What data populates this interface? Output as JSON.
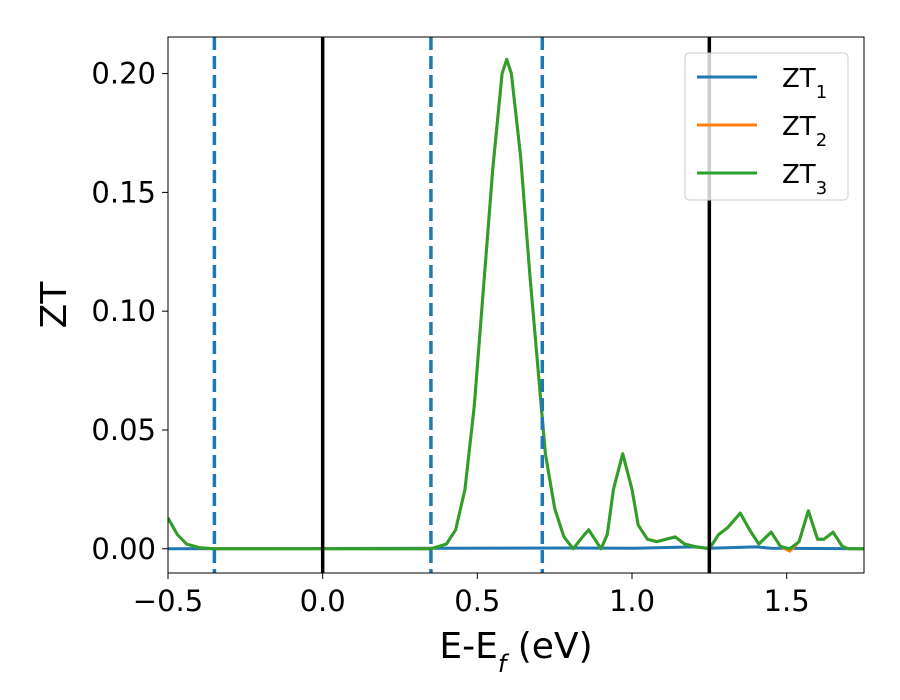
{
  "chart_data": {
    "type": "line",
    "xlabel": "E-E_f (eV)",
    "ylabel": "ZT",
    "xlim": [
      -0.5,
      1.75
    ],
    "ylim": [
      -0.0102,
      0.2154
    ],
    "xticks": [
      -0.5,
      0.0,
      0.5,
      1.0,
      1.5
    ],
    "xtick_labels": [
      "−0.5",
      "0.0",
      "0.5",
      "1.0",
      "1.5"
    ],
    "yticks": [
      0.0,
      0.05,
      0.1,
      0.15,
      0.2
    ],
    "ytick_labels": [
      "0.00",
      "0.05",
      "0.10",
      "0.15",
      "0.20"
    ],
    "grid": false,
    "legend_placement": "top-right",
    "vlines_dashed": [
      -0.35,
      0.35,
      0.71
    ],
    "vlines_solid": [
      0.0,
      1.25
    ],
    "colors": {
      "ZT1": "#1f77b4",
      "ZT2": "#ff7f0e",
      "ZT3": "#2ca02c",
      "dashed": "#1f77b4",
      "solid": "#000000"
    },
    "series": [
      {
        "name": "ZT1",
        "sub": "1",
        "x": [
          -0.5,
          0.8,
          1.0,
          1.2,
          1.25,
          1.4,
          1.45,
          1.75
        ],
        "y": [
          0,
          0.0003,
          0.0002,
          0.0008,
          0.0002,
          0.0008,
          0.0002,
          0
        ]
      },
      {
        "name": "ZT2",
        "sub": "2",
        "x": [
          -0.5,
          -0.47,
          -0.44,
          -0.4,
          -0.35,
          0.35,
          0.4,
          0.43,
          0.46,
          0.49,
          0.52,
          0.55,
          0.58,
          0.595,
          0.61,
          0.64,
          0.67,
          0.7,
          0.72,
          0.75,
          0.78,
          0.81,
          0.84,
          0.86,
          0.88,
          0.9,
          0.92,
          0.94,
          0.97,
          1.0,
          1.02,
          1.05,
          1.08,
          1.11,
          1.14,
          1.17,
          1.2,
          1.25,
          1.28,
          1.31,
          1.35,
          1.38,
          1.41,
          1.45,
          1.48,
          1.51,
          1.54,
          1.57,
          1.6,
          1.62,
          1.65,
          1.68,
          1.7,
          1.75
        ],
        "y": [
          0.013,
          0.006,
          0.002,
          0.0005,
          0,
          0,
          0.002,
          0.008,
          0.025,
          0.06,
          0.11,
          0.16,
          0.2,
          0.206,
          0.2,
          0.165,
          0.115,
          0.07,
          0.04,
          0.017,
          0.005,
          0.0,
          0.005,
          0.008,
          0.004,
          0.0,
          0.006,
          0.025,
          0.04,
          0.025,
          0.01,
          0.004,
          0.003,
          0.004,
          0.005,
          0.002,
          0.001,
          0.0,
          0.006,
          0.009,
          0.015,
          0.008,
          0.002,
          0.007,
          0.001,
          -0.001,
          0.003,
          0.016,
          0.004,
          0.004,
          0.007,
          0.001,
          0,
          0
        ]
      },
      {
        "name": "ZT3",
        "sub": "3",
        "x": [
          -0.5,
          -0.47,
          -0.44,
          -0.4,
          -0.35,
          0.35,
          0.4,
          0.43,
          0.46,
          0.49,
          0.52,
          0.55,
          0.58,
          0.595,
          0.61,
          0.64,
          0.67,
          0.7,
          0.72,
          0.75,
          0.78,
          0.81,
          0.84,
          0.86,
          0.88,
          0.9,
          0.92,
          0.94,
          0.97,
          1.0,
          1.02,
          1.05,
          1.08,
          1.11,
          1.14,
          1.17,
          1.2,
          1.25,
          1.28,
          1.31,
          1.35,
          1.38,
          1.41,
          1.45,
          1.48,
          1.51,
          1.54,
          1.57,
          1.6,
          1.62,
          1.65,
          1.68,
          1.7,
          1.75
        ],
        "y": [
          0.013,
          0.006,
          0.002,
          0.0005,
          0,
          0,
          0.002,
          0.008,
          0.025,
          0.06,
          0.11,
          0.16,
          0.2,
          0.206,
          0.2,
          0.165,
          0.115,
          0.07,
          0.04,
          0.017,
          0.005,
          0.0,
          0.005,
          0.008,
          0.004,
          0.0,
          0.006,
          0.025,
          0.04,
          0.025,
          0.01,
          0.004,
          0.003,
          0.004,
          0.005,
          0.002,
          0.001,
          0.0,
          0.006,
          0.009,
          0.015,
          0.008,
          0.002,
          0.007,
          0.001,
          0.0,
          0.003,
          0.016,
          0.004,
          0.004,
          0.007,
          0.001,
          0,
          0
        ]
      }
    ],
    "legend": [
      {
        "label": "ZT",
        "sub": "1"
      },
      {
        "label": "ZT",
        "sub": "2"
      },
      {
        "label": "ZT",
        "sub": "3"
      }
    ]
  }
}
